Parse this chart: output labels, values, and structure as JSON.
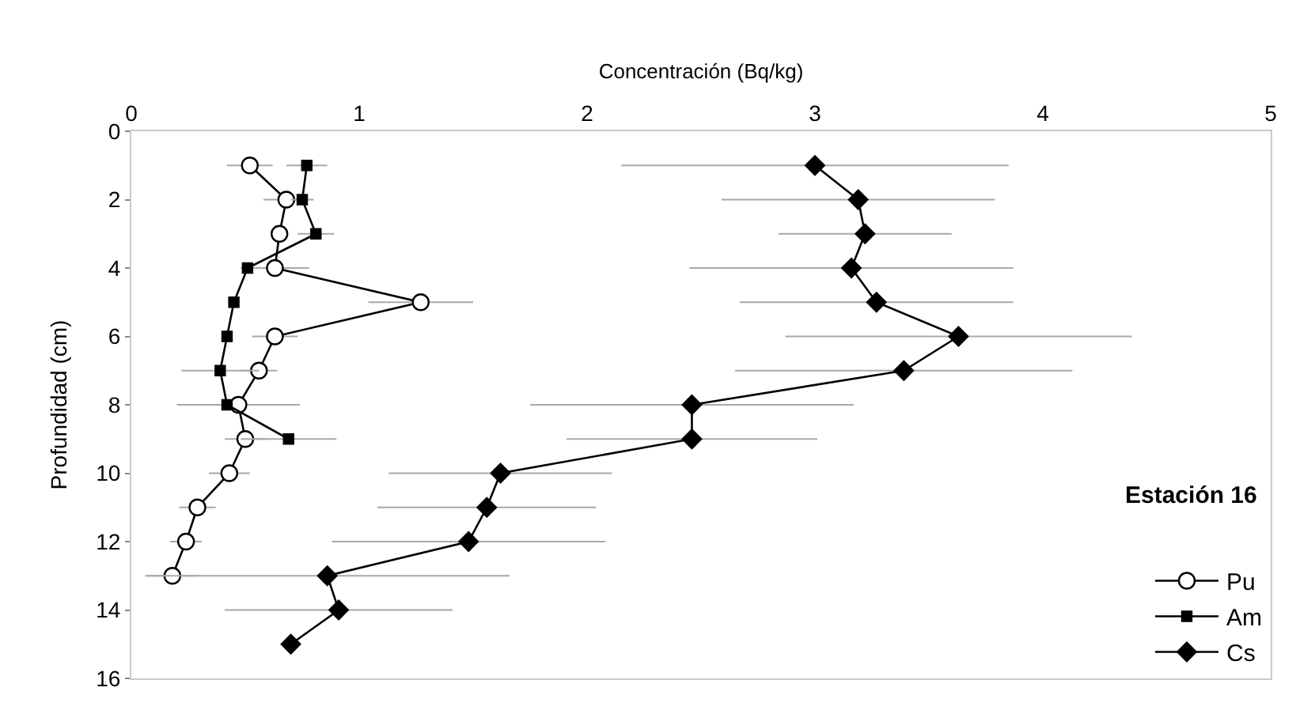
{
  "chart_data": {
    "type": "line",
    "xlabel": "Concentración (Bq/kg)",
    "ylabel": "Profundidad (cm)",
    "annotations": [
      "Estación 16"
    ],
    "xlim": [
      0,
      5
    ],
    "xticks": [
      0,
      1,
      2,
      3,
      4,
      5
    ],
    "ylim": [
      16,
      0
    ],
    "yticks": [
      0,
      2,
      4,
      6,
      8,
      10,
      12,
      14,
      16
    ],
    "grid": false,
    "legend": "bottom right",
    "series": [
      {
        "name": "Pu",
        "color": "#000000",
        "marker": "circle",
        "x": [
          0.52,
          0.68,
          0.65,
          0.63,
          1.27,
          0.63,
          0.56,
          0.47,
          0.5,
          0.43,
          0.29,
          0.24,
          0.18
        ],
        "values": [
          1,
          2,
          3,
          4,
          5,
          6,
          7,
          8,
          9,
          10,
          11,
          12,
          13
        ],
        "xerrors": [
          0.1,
          0.1,
          null,
          0.15,
          0.23,
          0.1,
          0.08,
          0.27,
          0.09,
          0.09,
          0.08,
          0.07,
          0.11
        ]
      },
      {
        "name": "Am",
        "color": "#000000",
        "marker": "square",
        "x": [
          0.77,
          0.75,
          0.81,
          0.51,
          0.45,
          0.42,
          0.39,
          0.42,
          0.69
        ],
        "values": [
          1,
          2,
          3,
          4,
          5,
          6,
          7,
          8,
          9
        ],
        "xerrors": [
          0.09,
          0.05,
          0.08,
          null,
          null,
          null,
          0.17,
          null,
          0.21
        ]
      },
      {
        "name": "Cs",
        "color": "#000000",
        "marker": "diamond",
        "x": [
          3.0,
          3.19,
          3.22,
          3.16,
          3.27,
          3.63,
          3.39,
          2.46,
          2.46,
          1.62,
          1.56,
          1.48,
          0.86,
          0.91,
          0.7
        ],
        "values": [
          1,
          2,
          3,
          4,
          5,
          6,
          7,
          8,
          9,
          10,
          11,
          12,
          13,
          14,
          15
        ],
        "xerrors": [
          0.85,
          0.6,
          0.38,
          0.71,
          0.6,
          0.76,
          0.74,
          0.71,
          0.55,
          0.49,
          0.48,
          0.6,
          0.8,
          0.5,
          null
        ]
      }
    ]
  }
}
